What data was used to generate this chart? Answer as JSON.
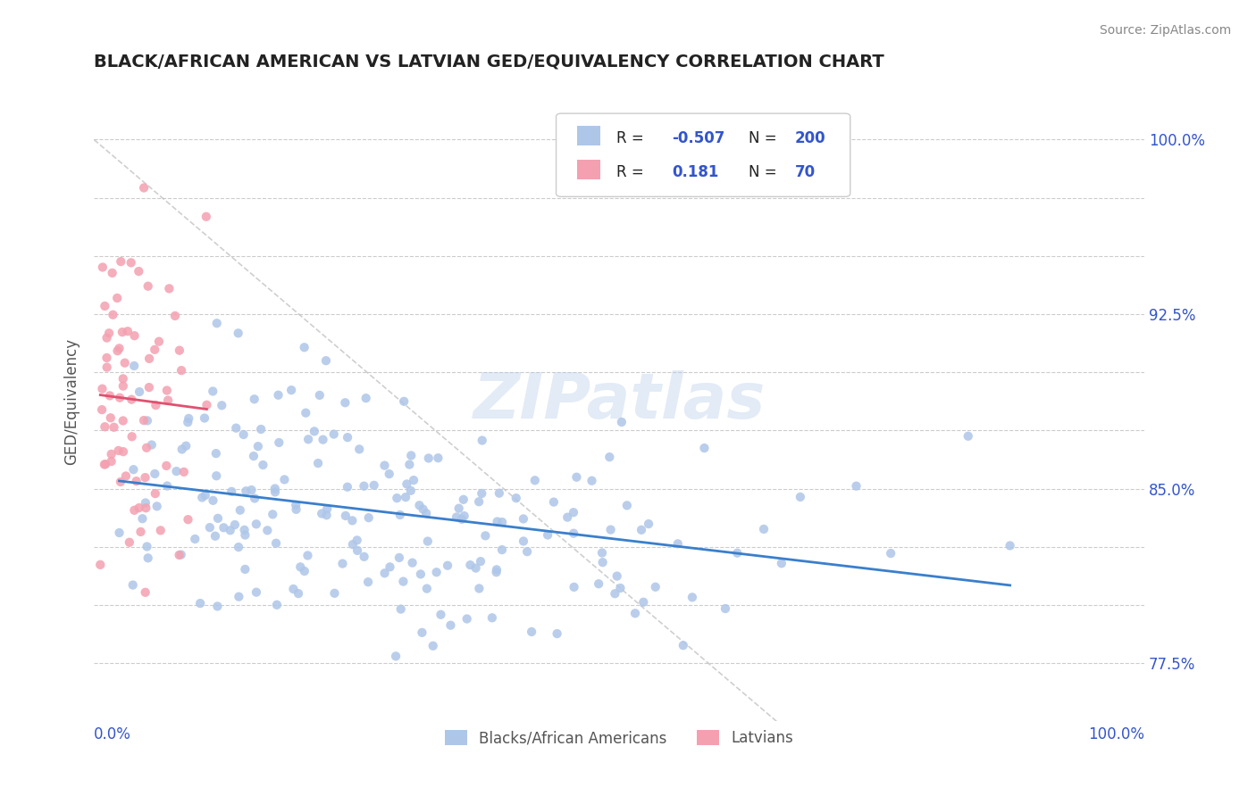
{
  "title": "BLACK/AFRICAN AMERICAN VS LATVIAN GED/EQUIVALENCY CORRELATION CHART",
  "source": "Source: ZipAtlas.com",
  "ylabel": "GED/Equivalency",
  "xlim": [
    0.0,
    1.0
  ],
  "ylim": [
    0.75,
    1.025
  ],
  "ytick_vals": [
    0.775,
    0.8,
    0.825,
    0.85,
    0.875,
    0.9,
    0.925,
    0.95,
    0.975,
    1.0
  ],
  "ytick_labels": [
    "77.5%",
    "",
    "",
    "85.0%",
    "",
    "",
    "92.5%",
    "",
    "",
    "100.0%"
  ],
  "blue_R": -0.507,
  "blue_N": 200,
  "pink_R": 0.181,
  "pink_N": 70,
  "blue_color": "#aec6e8",
  "pink_color": "#f4a0b0",
  "blue_line_color": "#3a7fcc",
  "pink_line_color": "#e05070",
  "ref_line_color": "#bbbbbb",
  "legend_text_color": "#3355cc",
  "watermark": "ZIPatlas",
  "background_color": "#ffffff",
  "grid_color": "#cccccc",
  "title_color": "#222222",
  "source_color": "#888888",
  "axis_label_color": "#3355cc",
  "ylabel_color": "#555555"
}
